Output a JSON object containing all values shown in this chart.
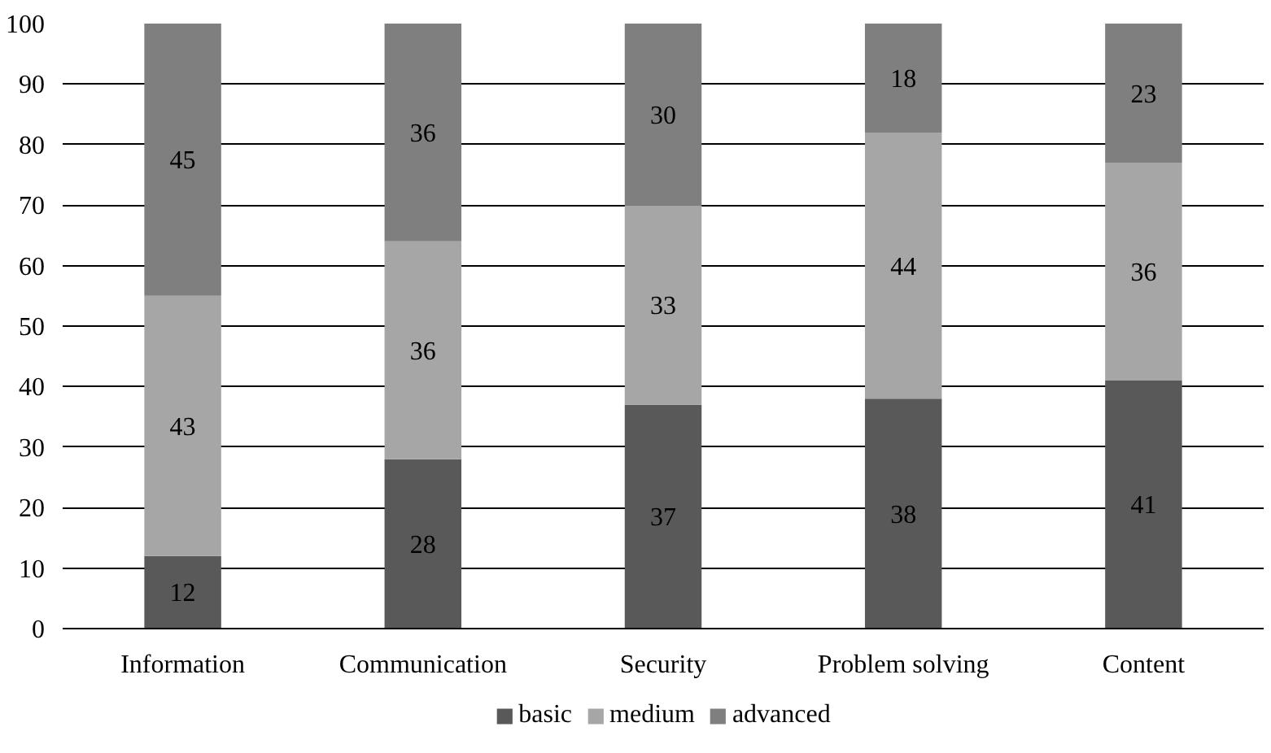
{
  "chart_data": {
    "type": "bar",
    "stacked": true,
    "categories": [
      "Information",
      "Communication",
      "Security",
      "Problem solving",
      "Content"
    ],
    "series": [
      {
        "name": "basic",
        "color": "#595959",
        "values": [
          12,
          28,
          37,
          38,
          41
        ]
      },
      {
        "name": "medium",
        "color": "#a6a6a6",
        "values": [
          43,
          36,
          33,
          44,
          36
        ]
      },
      {
        "name": "advanced",
        "color": "#7f7f7f",
        "values": [
          45,
          36,
          30,
          18,
          23
        ]
      }
    ],
    "ylim": [
      0,
      100
    ],
    "yticks": [
      0,
      10,
      20,
      30,
      40,
      50,
      60,
      70,
      80,
      90,
      100
    ],
    "grid": "y",
    "legend": "bottom",
    "data_labels": true
  }
}
